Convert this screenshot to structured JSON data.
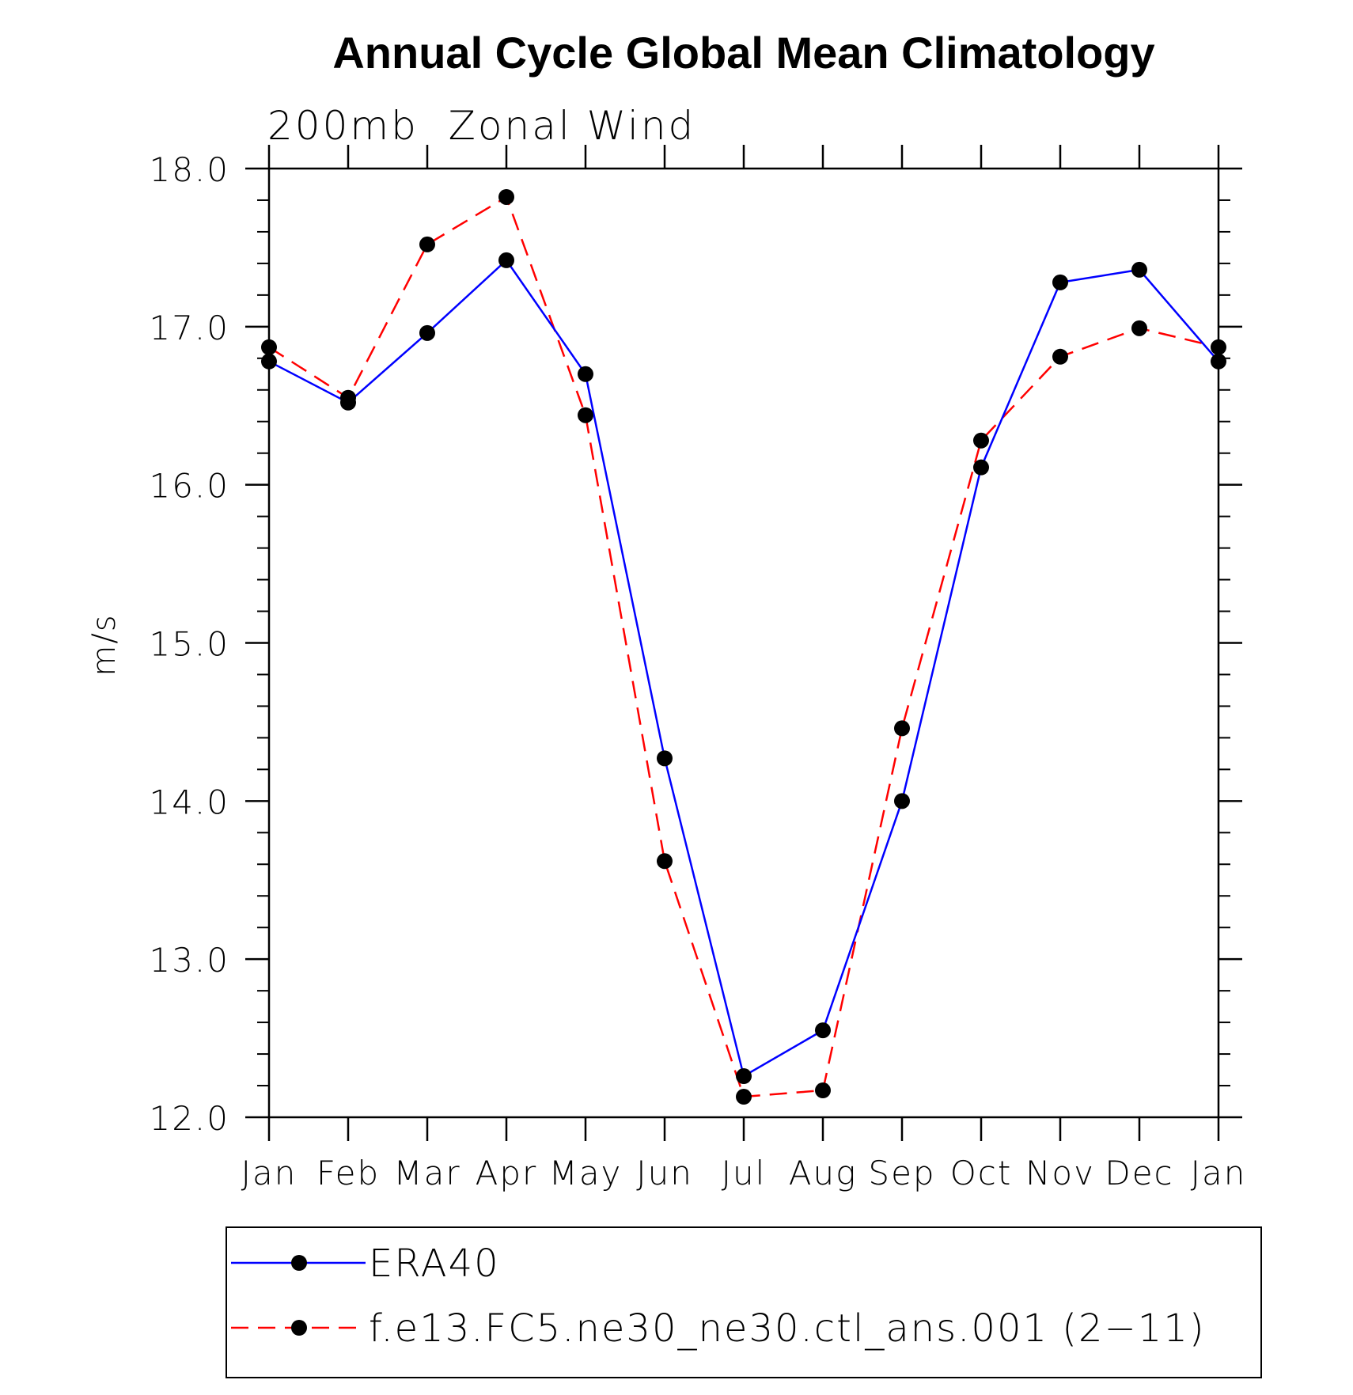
{
  "chart_data": {
    "type": "line",
    "title": "Annual Cycle Global Mean Climatology",
    "subtitle": "200mb  Zonal Wind",
    "xlabel": "",
    "ylabel": "m/s",
    "ylim": [
      12.0,
      18.0
    ],
    "yticks": [
      "12.0",
      "13.0",
      "14.0",
      "15.0",
      "16.0",
      "17.0",
      "18.0"
    ],
    "categories": [
      "Jan",
      "Feb",
      "Mar",
      "Apr",
      "May",
      "Jun",
      "Jul",
      "Aug",
      "Sep",
      "Oct",
      "Nov",
      "Dec",
      "Jan"
    ],
    "grid": false,
    "legend_position": "bottom",
    "series": [
      {
        "name": "ERA40",
        "color": "#0000ff",
        "style": "solid",
        "values": [
          16.78,
          16.52,
          16.96,
          17.42,
          16.7,
          14.27,
          12.26,
          12.55,
          14.0,
          16.11,
          17.28,
          17.36,
          16.78
        ]
      },
      {
        "name": "f.e13.FC5.ne30_ne30.ctl_ans.001 (2−11)",
        "color": "#ff0000",
        "style": "dashed",
        "values": [
          16.87,
          16.55,
          17.52,
          17.82,
          16.44,
          13.62,
          12.13,
          12.17,
          14.46,
          16.28,
          16.81,
          16.99,
          16.87
        ]
      }
    ]
  }
}
